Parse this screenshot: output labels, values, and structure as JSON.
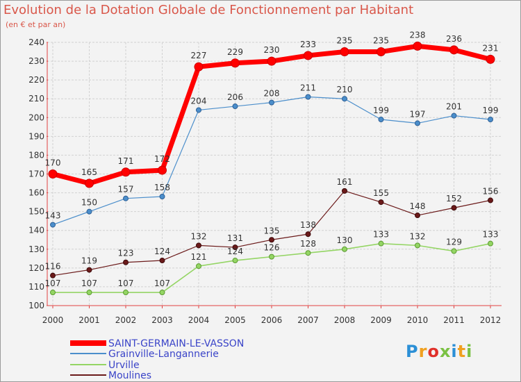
{
  "title": "Evolution de la Dotation Globale de Fonctionnement par Habitant",
  "subtitle": "(en € et par an)",
  "logo_text": "Proxiti",
  "chart_data": {
    "type": "line",
    "title": "Evolution de la Dotation Globale de Fonctionnement par Habitant",
    "subtitle": "(en € et par an)",
    "xlabel": "",
    "ylabel": "",
    "x": [
      "2000",
      "2001",
      "2002",
      "2003",
      "2004",
      "2005",
      "2006",
      "2007",
      "2008",
      "2009",
      "2010",
      "2011",
      "2012"
    ],
    "ylim": [
      100,
      240
    ],
    "yticks": [
      100,
      110,
      120,
      130,
      140,
      150,
      160,
      170,
      180,
      190,
      200,
      210,
      220,
      230,
      240
    ],
    "grid": true,
    "legend_position": "bottom-left",
    "series": [
      {
        "name": "SAINT-GERMAIN-LE-VASSON",
        "color": "#ff0000",
        "values": [
          170,
          165,
          171,
          172,
          227,
          229,
          230,
          233,
          235,
          235,
          238,
          236,
          231
        ]
      },
      {
        "name": "Grainville-Langannerie",
        "color": "#4b8ecb",
        "values": [
          143,
          150,
          157,
          158,
          204,
          206,
          208,
          211,
          210,
          199,
          197,
          201,
          199
        ]
      },
      {
        "name": "Urville",
        "color": "#94d564",
        "values": [
          107,
          107,
          107,
          107,
          121,
          124,
          126,
          128,
          130,
          133,
          132,
          129,
          133
        ]
      },
      {
        "name": "Moulines",
        "color": "#6b1a1a",
        "values": [
          116,
          119,
          123,
          124,
          132,
          131,
          135,
          138,
          161,
          155,
          148,
          152,
          156
        ]
      }
    ]
  }
}
